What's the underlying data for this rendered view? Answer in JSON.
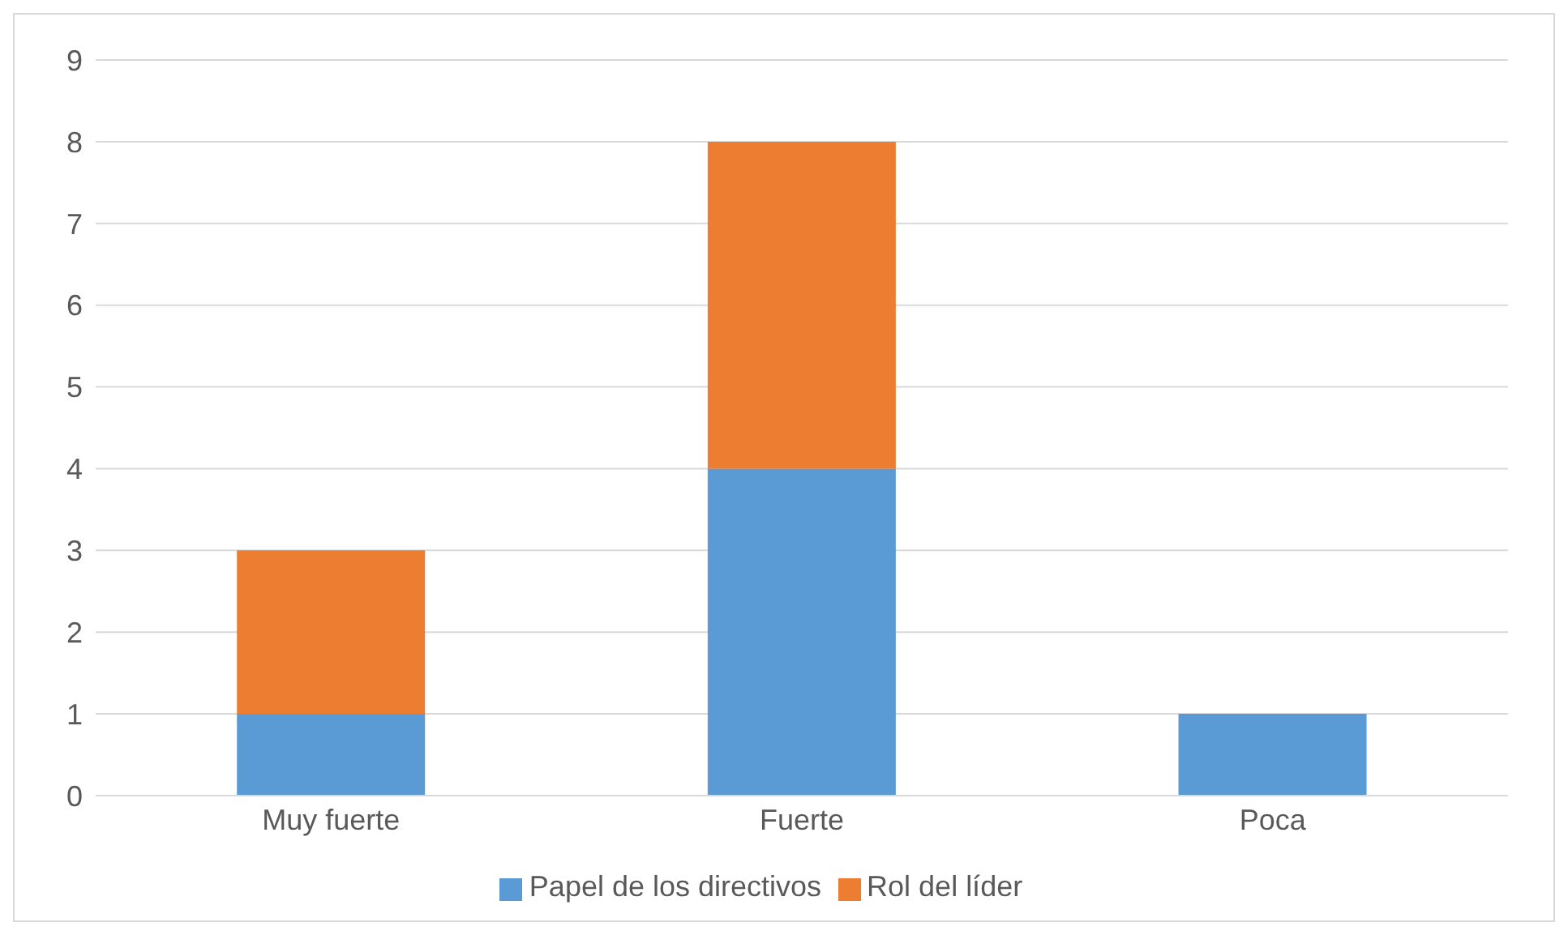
{
  "chart_data": {
    "type": "bar",
    "stacked": true,
    "categories": [
      "Muy fuerte",
      "Fuerte",
      "Poca"
    ],
    "series": [
      {
        "name": "Papel de los directivos",
        "color": "#5b9bd5",
        "values": [
          1,
          4,
          1
        ]
      },
      {
        "name": "Rol del líder",
        "color": "#ed7d31",
        "values": [
          2,
          4,
          0
        ]
      }
    ],
    "ylim": [
      0,
      9
    ],
    "yticks": [
      0,
      1,
      2,
      3,
      4,
      5,
      6,
      7,
      8,
      9
    ],
    "grid": "y",
    "legend": "bottom"
  }
}
